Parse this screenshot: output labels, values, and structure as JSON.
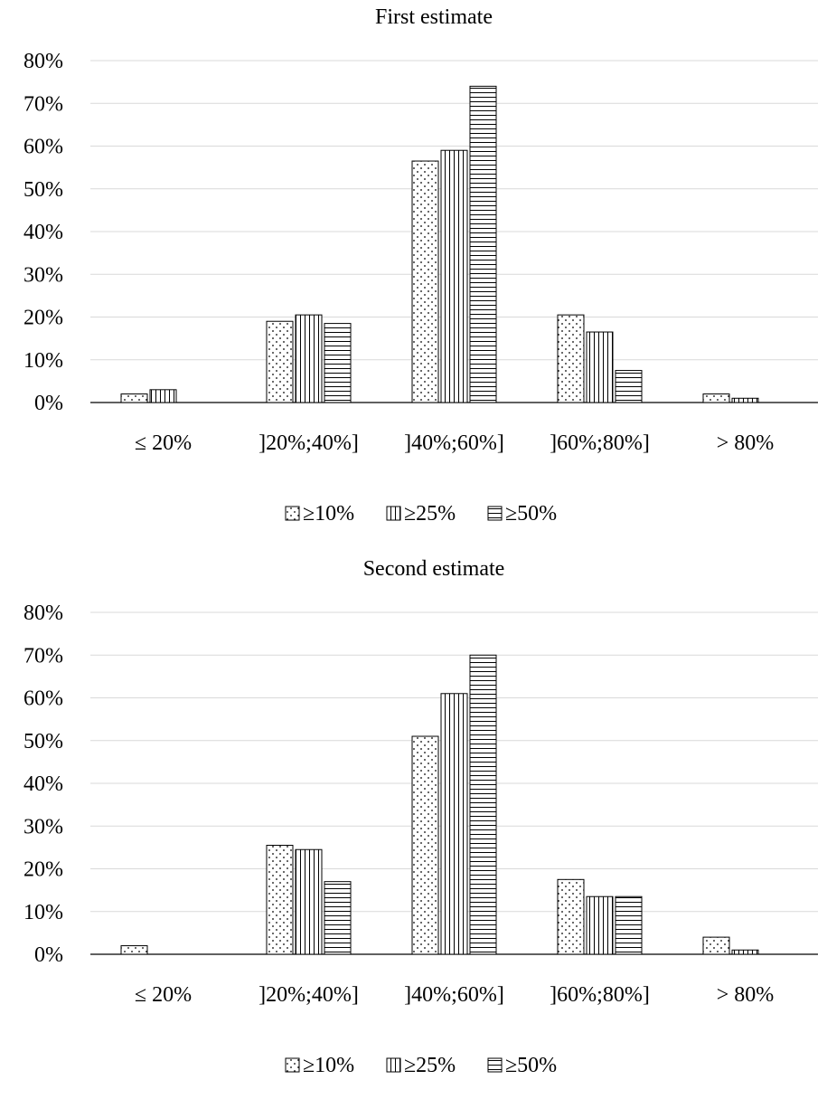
{
  "chart_data": [
    {
      "type": "bar",
      "title": "First estimate",
      "categories": [
        "≤ 20%",
        "]20%;40%]",
        "]40%;60%]",
        "]60%;80%]",
        "> 80%"
      ],
      "ylim": [
        0,
        80
      ],
      "yticks": [
        "0%",
        "10%",
        "20%",
        "30%",
        "40%",
        "50%",
        "60%",
        "70%",
        "80%"
      ],
      "grid": true,
      "legend": "bottom",
      "series": [
        {
          "name": "≥10%",
          "pattern": "dots",
          "values": [
            2,
            19,
            56.5,
            20.5,
            2
          ]
        },
        {
          "name": "≥25%",
          "pattern": "vertical",
          "values": [
            3,
            20.5,
            59,
            16.5,
            1
          ]
        },
        {
          "name": "≥50%",
          "pattern": "horizontal",
          "values": [
            0,
            18.5,
            74,
            7.5,
            0
          ]
        }
      ]
    },
    {
      "type": "bar",
      "title": "Second estimate",
      "categories": [
        "≤ 20%",
        "]20%;40%]",
        "]40%;60%]",
        "]60%;80%]",
        "> 80%"
      ],
      "ylim": [
        0,
        80
      ],
      "yticks": [
        "0%",
        "10%",
        "20%",
        "30%",
        "40%",
        "50%",
        "60%",
        "70%",
        "80%"
      ],
      "grid": true,
      "legend": "bottom",
      "series": [
        {
          "name": "≥10%",
          "pattern": "dots",
          "values": [
            2,
            25.5,
            51,
            17.5,
            4
          ]
        },
        {
          "name": "≥25%",
          "pattern": "vertical",
          "values": [
            0,
            24.5,
            61,
            13.5,
            1
          ]
        },
        {
          "name": "≥50%",
          "pattern": "horizontal",
          "values": [
            0,
            17,
            70,
            13.5,
            0
          ]
        }
      ]
    }
  ]
}
